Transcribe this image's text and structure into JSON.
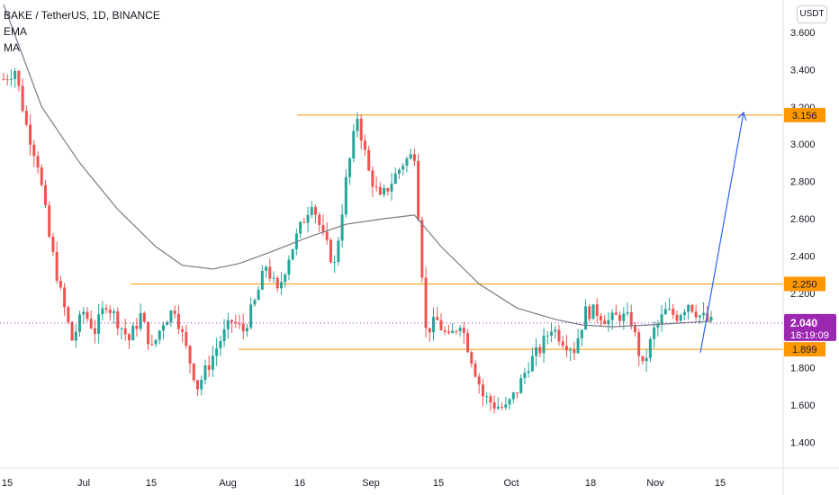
{
  "legend": {
    "symbol": "BAKE / TetherUS, 1D, BINANCE",
    "indicator_1": "EMA",
    "indicator_2": "MA"
  },
  "price_axis": {
    "unit": "USDT",
    "ticks": [
      "3.600",
      "3.400",
      "3.200",
      "3.000",
      "2.800",
      "2.600",
      "2.400",
      "2.200",
      "2.000",
      "1.800",
      "1.600",
      "1.400"
    ]
  },
  "time_axis": {
    "ticks": [
      "15",
      "Jul",
      "15",
      "Aug",
      "16",
      "Sep",
      "15",
      "Oct",
      "18",
      "Nov",
      "15"
    ]
  },
  "tags": {
    "level_high": "3.156",
    "level_mid": "2.250",
    "current_price": "2.040",
    "countdown": "18:19:09",
    "level_low": "1.899"
  },
  "colors": {
    "up": "#26a69a",
    "down": "#ef5350",
    "level_line": "#ff9800",
    "ma_line": "#787b86",
    "projection_arrow": "#2962ff",
    "current_price": "#9c27b0"
  },
  "chart_data": {
    "type": "candlestick",
    "title": "BAKE / TetherUS, 1D, BINANCE",
    "ylim": [
      1.35,
      3.7
    ],
    "horizontal_levels": [
      3.156,
      2.25,
      1.899
    ],
    "current_price": 2.04,
    "projection_target": 3.156,
    "candles_note": "approximate daily OHLC path read from chart",
    "path": [
      [
        0,
        3.35
      ],
      [
        3,
        3.4
      ],
      [
        6,
        3.1
      ],
      [
        9,
        2.9
      ],
      [
        12,
        2.5
      ],
      [
        15,
        2.2
      ],
      [
        18,
        1.95
      ],
      [
        21,
        2.1
      ],
      [
        24,
        2.0
      ],
      [
        27,
        2.15
      ],
      [
        30,
        2.05
      ],
      [
        33,
        1.95
      ],
      [
        36,
        2.08
      ],
      [
        39,
        1.9
      ],
      [
        42,
        2.05
      ],
      [
        45,
        2.12
      ],
      [
        48,
        1.9
      ],
      [
        51,
        1.7
      ],
      [
        54,
        1.82
      ],
      [
        57,
        1.95
      ],
      [
        60,
        2.05
      ],
      [
        63,
        2.0
      ],
      [
        66,
        2.15
      ],
      [
        69,
        2.35
      ],
      [
        72,
        2.2
      ],
      [
        75,
        2.4
      ],
      [
        78,
        2.55
      ],
      [
        81,
        2.7
      ],
      [
        84,
        2.5
      ],
      [
        87,
        2.35
      ],
      [
        90,
        2.8
      ],
      [
        93,
        3.15
      ],
      [
        96,
        2.85
      ],
      [
        99,
        2.7
      ],
      [
        102,
        2.8
      ],
      [
        105,
        2.9
      ],
      [
        108,
        2.95
      ],
      [
        111,
        2.0
      ],
      [
        114,
        2.05
      ],
      [
        117,
        1.95
      ],
      [
        120,
        2.05
      ],
      [
        123,
        1.85
      ],
      [
        126,
        1.65
      ],
      [
        129,
        1.6
      ],
      [
        132,
        1.58
      ],
      [
        135,
        1.68
      ],
      [
        138,
        1.82
      ],
      [
        141,
        1.9
      ],
      [
        144,
        2.02
      ],
      [
        147,
        1.95
      ],
      [
        150,
        1.9
      ],
      [
        153,
        2.1
      ],
      [
        156,
        2.1
      ],
      [
        159,
        2.05
      ],
      [
        162,
        2.08
      ],
      [
        165,
        2.05
      ],
      [
        168,
        1.8
      ],
      [
        171,
        2.0
      ],
      [
        174,
        2.1
      ],
      [
        177,
        2.08
      ],
      [
        180,
        2.15
      ],
      [
        183,
        2.08
      ],
      [
        186,
        2.04
      ]
    ],
    "ma_path": [
      [
        0,
        3.75
      ],
      [
        10,
        3.2
      ],
      [
        20,
        2.9
      ],
      [
        30,
        2.65
      ],
      [
        40,
        2.45
      ],
      [
        47,
        2.35
      ],
      [
        55,
        2.33
      ],
      [
        62,
        2.36
      ],
      [
        70,
        2.42
      ],
      [
        80,
        2.5
      ],
      [
        90,
        2.57
      ],
      [
        100,
        2.6
      ],
      [
        108,
        2.62
      ],
      [
        115,
        2.45
      ],
      [
        125,
        2.25
      ],
      [
        135,
        2.12
      ],
      [
        145,
        2.06
      ],
      [
        152,
        2.03
      ],
      [
        160,
        2.02
      ],
      [
        170,
        2.03
      ],
      [
        178,
        2.04
      ],
      [
        186,
        2.05
      ]
    ]
  }
}
